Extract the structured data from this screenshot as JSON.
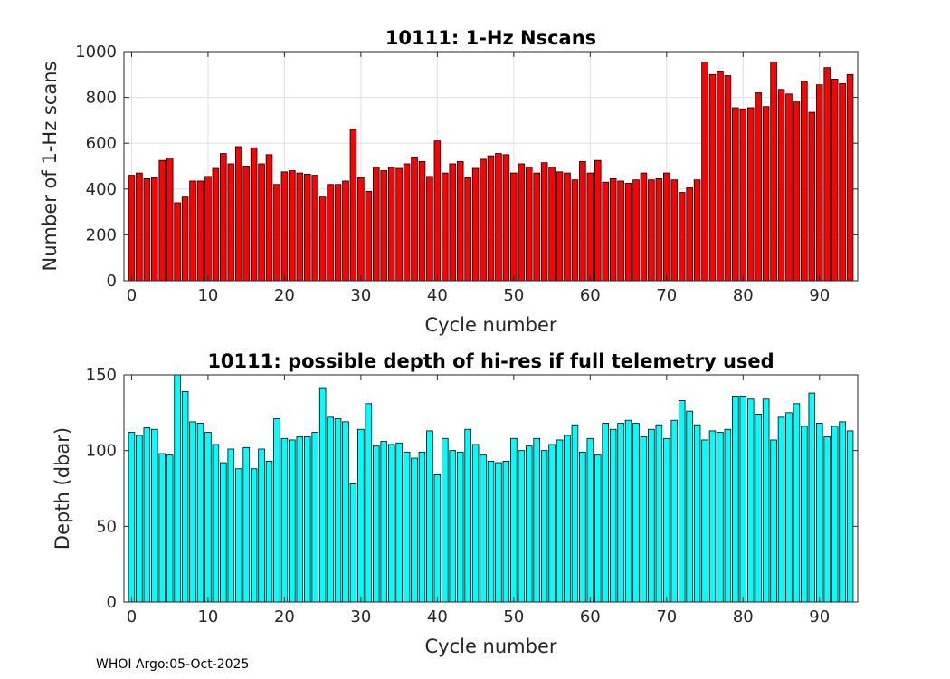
{
  "chart_data": [
    {
      "type": "bar",
      "title": "10111: 1-Hz Nscans",
      "xlabel": "Cycle number",
      "ylabel": "Number of 1-Hz scans",
      "xlim": [
        -1,
        95
      ],
      "ylim": [
        0,
        1000
      ],
      "xticks": [
        0,
        10,
        20,
        30,
        40,
        50,
        60,
        70,
        80,
        90
      ],
      "yticks": [
        0,
        200,
        400,
        600,
        800,
        1000
      ],
      "grid": true,
      "bar_color": "#ff0000",
      "x": [
        0,
        1,
        2,
        3,
        4,
        5,
        6,
        7,
        8,
        9,
        10,
        11,
        12,
        13,
        14,
        15,
        16,
        17,
        18,
        19,
        20,
        21,
        22,
        23,
        24,
        25,
        26,
        27,
        28,
        29,
        30,
        31,
        32,
        33,
        34,
        35,
        36,
        37,
        38,
        39,
        40,
        41,
        42,
        43,
        44,
        45,
        46,
        47,
        48,
        49,
        50,
        51,
        52,
        53,
        54,
        55,
        56,
        57,
        58,
        59,
        60,
        61,
        62,
        63,
        64,
        65,
        66,
        67,
        68,
        69,
        70,
        71,
        72,
        73,
        74,
        75,
        76,
        77,
        78,
        79,
        80,
        81,
        82,
        83,
        84,
        85,
        86,
        87,
        88,
        89,
        90,
        91,
        92,
        93,
        94
      ],
      "values": [
        460,
        470,
        445,
        450,
        525,
        535,
        340,
        365,
        435,
        435,
        455,
        490,
        555,
        510,
        585,
        500,
        580,
        510,
        550,
        420,
        475,
        480,
        470,
        465,
        460,
        365,
        420,
        420,
        435,
        660,
        450,
        390,
        495,
        480,
        495,
        490,
        510,
        540,
        520,
        455,
        610,
        470,
        510,
        520,
        450,
        490,
        530,
        545,
        555,
        550,
        470,
        510,
        495,
        470,
        515,
        495,
        475,
        470,
        440,
        520,
        470,
        525,
        430,
        445,
        435,
        425,
        440,
        470,
        440,
        445,
        470,
        440,
        385,
        405,
        440,
        955,
        900,
        915,
        895,
        755,
        750,
        755,
        820,
        760,
        955,
        835,
        815,
        780,
        870,
        735,
        855,
        930,
        880,
        860,
        900
      ]
    },
    {
      "type": "bar",
      "title": "10111: possible depth of hi-res if full telemetry used",
      "xlabel": "Cycle number",
      "ylabel": "Depth (dbar)",
      "xlim": [
        -1,
        95
      ],
      "ylim": [
        0,
        150
      ],
      "xticks": [
        0,
        10,
        20,
        30,
        40,
        50,
        60,
        70,
        80,
        90
      ],
      "yticks": [
        0,
        50,
        100,
        150
      ],
      "grid": false,
      "bar_color": "#00ffff",
      "x": [
        0,
        1,
        2,
        3,
        4,
        5,
        6,
        7,
        8,
        9,
        10,
        11,
        12,
        13,
        14,
        15,
        16,
        17,
        18,
        19,
        20,
        21,
        22,
        23,
        24,
        25,
        26,
        27,
        28,
        29,
        30,
        31,
        32,
        33,
        34,
        35,
        36,
        37,
        38,
        39,
        40,
        41,
        42,
        43,
        44,
        45,
        46,
        47,
        48,
        49,
        50,
        51,
        52,
        53,
        54,
        55,
        56,
        57,
        58,
        59,
        60,
        61,
        62,
        63,
        64,
        65,
        66,
        67,
        68,
        69,
        70,
        71,
        72,
        73,
        74,
        75,
        76,
        77,
        78,
        79,
        80,
        81,
        82,
        83,
        84,
        85,
        86,
        87,
        88,
        89,
        90,
        91,
        92,
        93,
        94
      ],
      "values": [
        112,
        110,
        115,
        114,
        98,
        97,
        150,
        139,
        119,
        118,
        112,
        104,
        92,
        101,
        88,
        102,
        88,
        101,
        93,
        121,
        108,
        107,
        109,
        109,
        112,
        141,
        122,
        121,
        119,
        78,
        114,
        131,
        103,
        106,
        104,
        105,
        99,
        95,
        99,
        113,
        84,
        108,
        100,
        99,
        114,
        104,
        97,
        93,
        92,
        93,
        108,
        100,
        103,
        108,
        100,
        104,
        107,
        110,
        117,
        99,
        108,
        97,
        118,
        114,
        118,
        120,
        118,
        109,
        114,
        117,
        108,
        120,
        133,
        126,
        117,
        107,
        113,
        112,
        114,
        136,
        136,
        134,
        124,
        134,
        107,
        122,
        125,
        131,
        116,
        138,
        118,
        109,
        116,
        119,
        113
      ]
    }
  ],
  "footer": "WHOI Argo:05-Oct-2025"
}
